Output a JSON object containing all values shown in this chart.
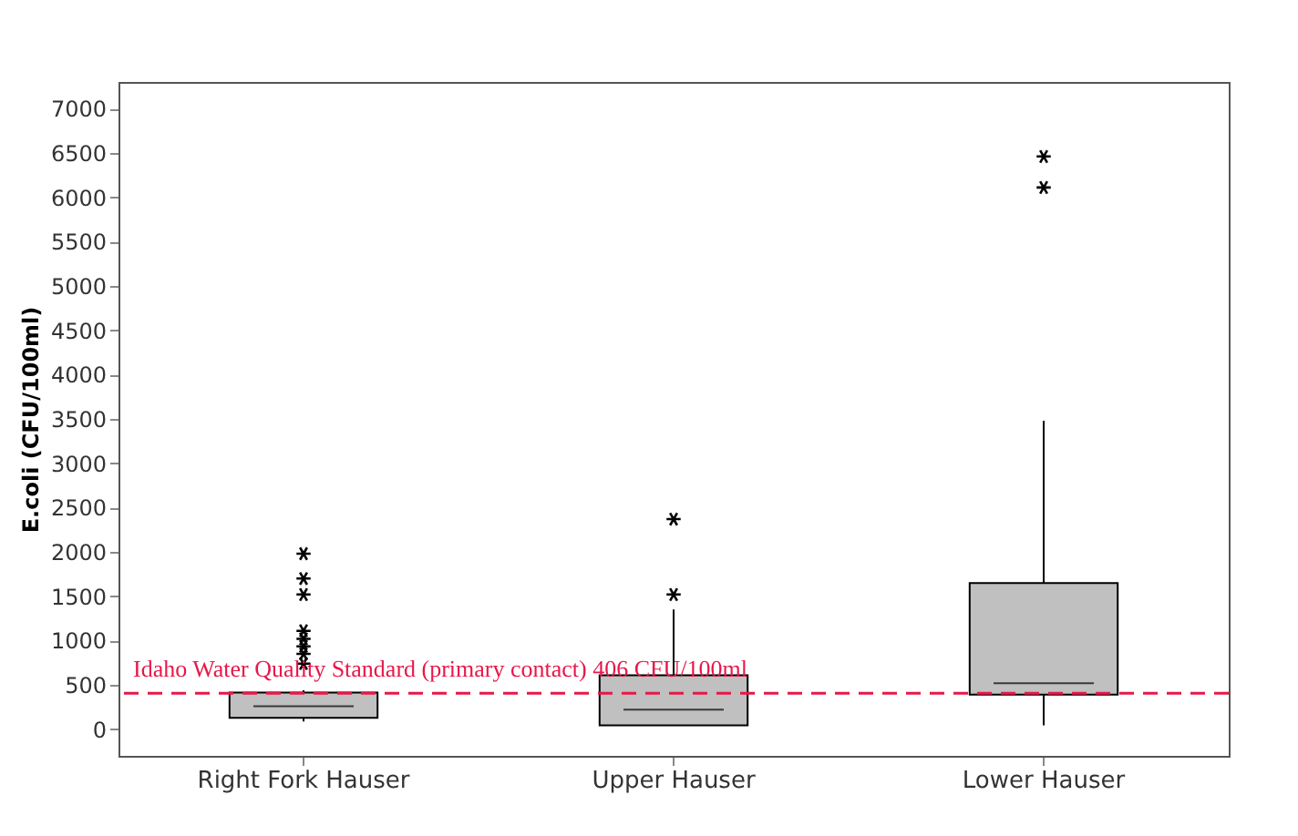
{
  "chart_data": {
    "type": "box",
    "ylabel": "E.coli (CFU/100ml)",
    "categories": [
      "Right Fork Hauser",
      "Upper Hauser",
      "Lower Hauser"
    ],
    "boxes": [
      {
        "low": 87,
        "q1": 130,
        "median": 260,
        "q3": 413,
        "high": 440,
        "outliers": [
          740,
          850,
          935,
          1020,
          1110,
          1520,
          1700,
          1980
        ]
      },
      {
        "low": 40,
        "q1": 45,
        "median": 220,
        "q3": 610,
        "high": 1350,
        "outliers": [
          1520,
          2370
        ]
      },
      {
        "low": 45,
        "q1": 390,
        "median": 520,
        "q3": 1650,
        "high": 3480,
        "outliers": [
          6110,
          6460
        ]
      }
    ],
    "color": "#c0c0c0",
    "ylim": [
      -300,
      7300
    ],
    "yticks": [
      0,
      500,
      1000,
      1500,
      2000,
      2500,
      3000,
      3500,
      4000,
      4500,
      5000,
      5500,
      6000,
      6500,
      7000
    ],
    "ref_lines": [
      {
        "axis": "y",
        "value": 406,
        "label": "Idaho Water Quality Standard (primary contact) 406 CFU/100ml",
        "color": "#e8174a",
        "line_style": "dashed"
      }
    ],
    "grid": false
  }
}
